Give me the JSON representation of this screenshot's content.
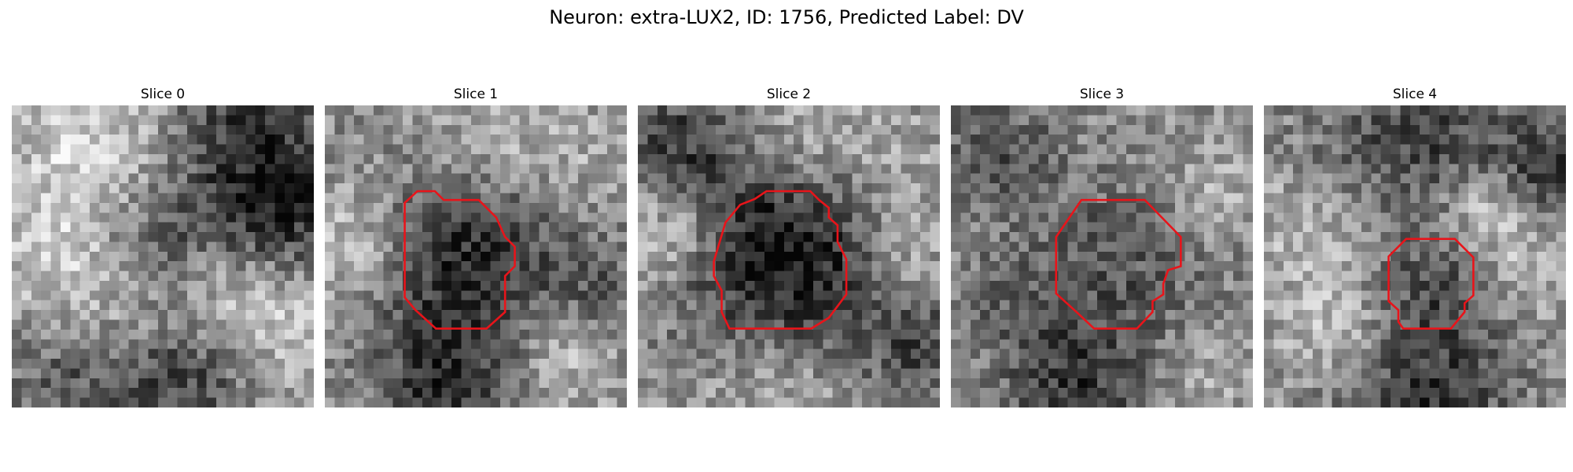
{
  "figure": {
    "title": "Neuron: extra-LUX2, ID: 1756, Predicted Label: DV"
  },
  "contour_color": "#e8141a",
  "grid_size": 31,
  "panels": [
    {
      "title": "Slice 0",
      "has_contour": false,
      "contour": [],
      "blobs": [
        {
          "cx": 6.5,
          "cy": 4.5,
          "r": 6.0,
          "a": 0.25
        },
        {
          "cx": 14.0,
          "cy": 5.5,
          "r": 5.0,
          "a": 0.15
        },
        {
          "cx": 24.0,
          "cy": 4.0,
          "r": 6.5,
          "a": -0.38
        },
        {
          "cx": 27.5,
          "cy": 11.0,
          "r": 4.0,
          "a": -0.25
        },
        {
          "cx": 14.0,
          "cy": 12.0,
          "r": 5.5,
          "a": -0.25
        },
        {
          "cx": 5.0,
          "cy": 16.0,
          "r": 5.0,
          "a": 0.25
        },
        {
          "cx": 21.5,
          "cy": 20.0,
          "r": 4.5,
          "a": 0.25
        },
        {
          "cx": 29.0,
          "cy": 23.0,
          "r": 4.0,
          "a": 0.15
        },
        {
          "cx": 17.0,
          "cy": 27.0,
          "r": 5.0,
          "a": -0.32
        },
        {
          "cx": 5.0,
          "cy": 27.5,
          "r": 4.5,
          "a": -0.2
        },
        {
          "cx": 12.0,
          "cy": 21.0,
          "r": 3.5,
          "a": 0.12
        }
      ]
    },
    {
      "title": "Slice 1",
      "has_contour": true,
      "contour": [
        [
          8.2,
          10.0
        ],
        [
          9.5,
          8.8
        ],
        [
          11.3,
          8.8
        ],
        [
          12.2,
          9.7
        ],
        [
          15.8,
          9.7
        ],
        [
          17.6,
          11.5
        ],
        [
          18.5,
          13.5
        ],
        [
          19.5,
          14.5
        ],
        [
          19.5,
          16.5
        ],
        [
          18.5,
          17.5
        ],
        [
          18.5,
          21.2
        ],
        [
          16.6,
          22.9
        ],
        [
          11.4,
          22.9
        ],
        [
          9.3,
          21.0
        ],
        [
          8.2,
          19.7
        ]
      ],
      "blobs": [
        {
          "cx": 13.8,
          "cy": 15.8,
          "r": 7.0,
          "a": -0.42
        },
        {
          "cx": 3.0,
          "cy": 14.0,
          "r": 4.5,
          "a": 0.25
        },
        {
          "cx": 17.0,
          "cy": 3.0,
          "r": 5.0,
          "a": 0.18
        },
        {
          "cx": 27.5,
          "cy": 6.0,
          "r": 4.5,
          "a": 0.1
        },
        {
          "cx": 27.0,
          "cy": 18.0,
          "r": 4.0,
          "a": -0.18
        },
        {
          "cx": 12.0,
          "cy": 28.5,
          "r": 4.5,
          "a": -0.35
        },
        {
          "cx": 24.0,
          "cy": 25.0,
          "r": 4.0,
          "a": 0.22
        }
      ]
    },
    {
      "title": "Slice 2",
      "has_contour": true,
      "contour": [
        [
          9.0,
          12.0
        ],
        [
          10.5,
          10.2
        ],
        [
          12.0,
          9.6
        ],
        [
          13.2,
          8.8
        ],
        [
          17.7,
          8.8
        ],
        [
          18.6,
          9.7
        ],
        [
          19.6,
          10.5
        ],
        [
          19.6,
          11.5
        ],
        [
          20.5,
          12.3
        ],
        [
          20.5,
          14.0
        ],
        [
          21.4,
          15.8
        ],
        [
          21.4,
          19.4
        ],
        [
          19.6,
          21.8
        ],
        [
          17.8,
          22.9
        ],
        [
          9.4,
          22.9
        ],
        [
          8.6,
          21.2
        ],
        [
          8.6,
          19.0
        ],
        [
          7.8,
          17.5
        ],
        [
          7.8,
          16.0
        ]
      ],
      "blobs": [
        {
          "cx": 14.5,
          "cy": 15.8,
          "r": 7.5,
          "a": -0.55
        },
        {
          "cx": 3.0,
          "cy": 12.5,
          "r": 4.0,
          "a": 0.28
        },
        {
          "cx": 4.0,
          "cy": 3.5,
          "r": 4.5,
          "a": -0.3
        },
        {
          "cx": 17.0,
          "cy": 2.5,
          "r": 5.0,
          "a": 0.18
        },
        {
          "cx": 27.0,
          "cy": 5.0,
          "r": 4.0,
          "a": 0.1
        },
        {
          "cx": 26.5,
          "cy": 14.0,
          "r": 3.5,
          "a": 0.22
        },
        {
          "cx": 14.0,
          "cy": 27.0,
          "r": 6.0,
          "a": 0.2
        },
        {
          "cx": 28.5,
          "cy": 25.0,
          "r": 4.0,
          "a": -0.25
        }
      ]
    },
    {
      "title": "Slice 3",
      "has_contour": true,
      "contour": [
        [
          10.8,
          13.5
        ],
        [
          13.4,
          9.7
        ],
        [
          19.9,
          9.7
        ],
        [
          23.6,
          13.5
        ],
        [
          23.6,
          16.5
        ],
        [
          22.3,
          16.9
        ],
        [
          21.8,
          18.3
        ],
        [
          21.8,
          19.4
        ],
        [
          20.7,
          20.1
        ],
        [
          20.7,
          21.2
        ],
        [
          19.1,
          22.9
        ],
        [
          14.7,
          22.9
        ],
        [
          13.0,
          21.3
        ],
        [
          10.8,
          19.3
        ]
      ],
      "blobs": [
        {
          "cx": 17.2,
          "cy": 16.2,
          "r": 7.0,
          "a": -0.22
        },
        {
          "cx": 4.0,
          "cy": 4.0,
          "r": 4.5,
          "a": -0.22
        },
        {
          "cx": 26.5,
          "cy": 8.0,
          "r": 4.0,
          "a": 0.15
        },
        {
          "cx": 5.0,
          "cy": 19.0,
          "r": 4.0,
          "a": -0.12
        },
        {
          "cx": 12.0,
          "cy": 28.5,
          "r": 5.0,
          "a": -0.32
        },
        {
          "cx": 26.0,
          "cy": 26.5,
          "r": 4.0,
          "a": 0.12
        }
      ]
    },
    {
      "title": "Slice 4",
      "has_contour": true,
      "contour": [
        [
          12.8,
          15.5
        ],
        [
          14.6,
          13.7
        ],
        [
          19.6,
          13.7
        ],
        [
          21.5,
          15.6
        ],
        [
          21.5,
          19.5
        ],
        [
          20.6,
          20.3
        ],
        [
          20.6,
          21.2
        ],
        [
          19.2,
          22.9
        ],
        [
          14.3,
          22.9
        ],
        [
          13.8,
          22.2
        ],
        [
          13.8,
          21.0
        ],
        [
          12.8,
          20.1
        ]
      ],
      "blobs": [
        {
          "cx": 17.3,
          "cy": 18.3,
          "r": 5.0,
          "a": -0.25
        },
        {
          "cx": 9.0,
          "cy": 3.0,
          "r": 4.5,
          "a": -0.15
        },
        {
          "cx": 18.5,
          "cy": 3.0,
          "r": 5.5,
          "a": -0.28
        },
        {
          "cx": 29.0,
          "cy": 7.0,
          "r": 4.0,
          "a": -0.35
        },
        {
          "cx": 22.0,
          "cy": 9.5,
          "r": 3.5,
          "a": 0.25
        },
        {
          "cx": 4.0,
          "cy": 12.0,
          "r": 4.5,
          "a": 0.15
        },
        {
          "cx": 26.0,
          "cy": 15.0,
          "r": 4.5,
          "a": 0.2
        },
        {
          "cx": 16.0,
          "cy": 30.5,
          "r": 6.0,
          "a": -0.35
        },
        {
          "cx": 7.0,
          "cy": 22.0,
          "r": 4.0,
          "a": 0.22
        }
      ]
    }
  ]
}
